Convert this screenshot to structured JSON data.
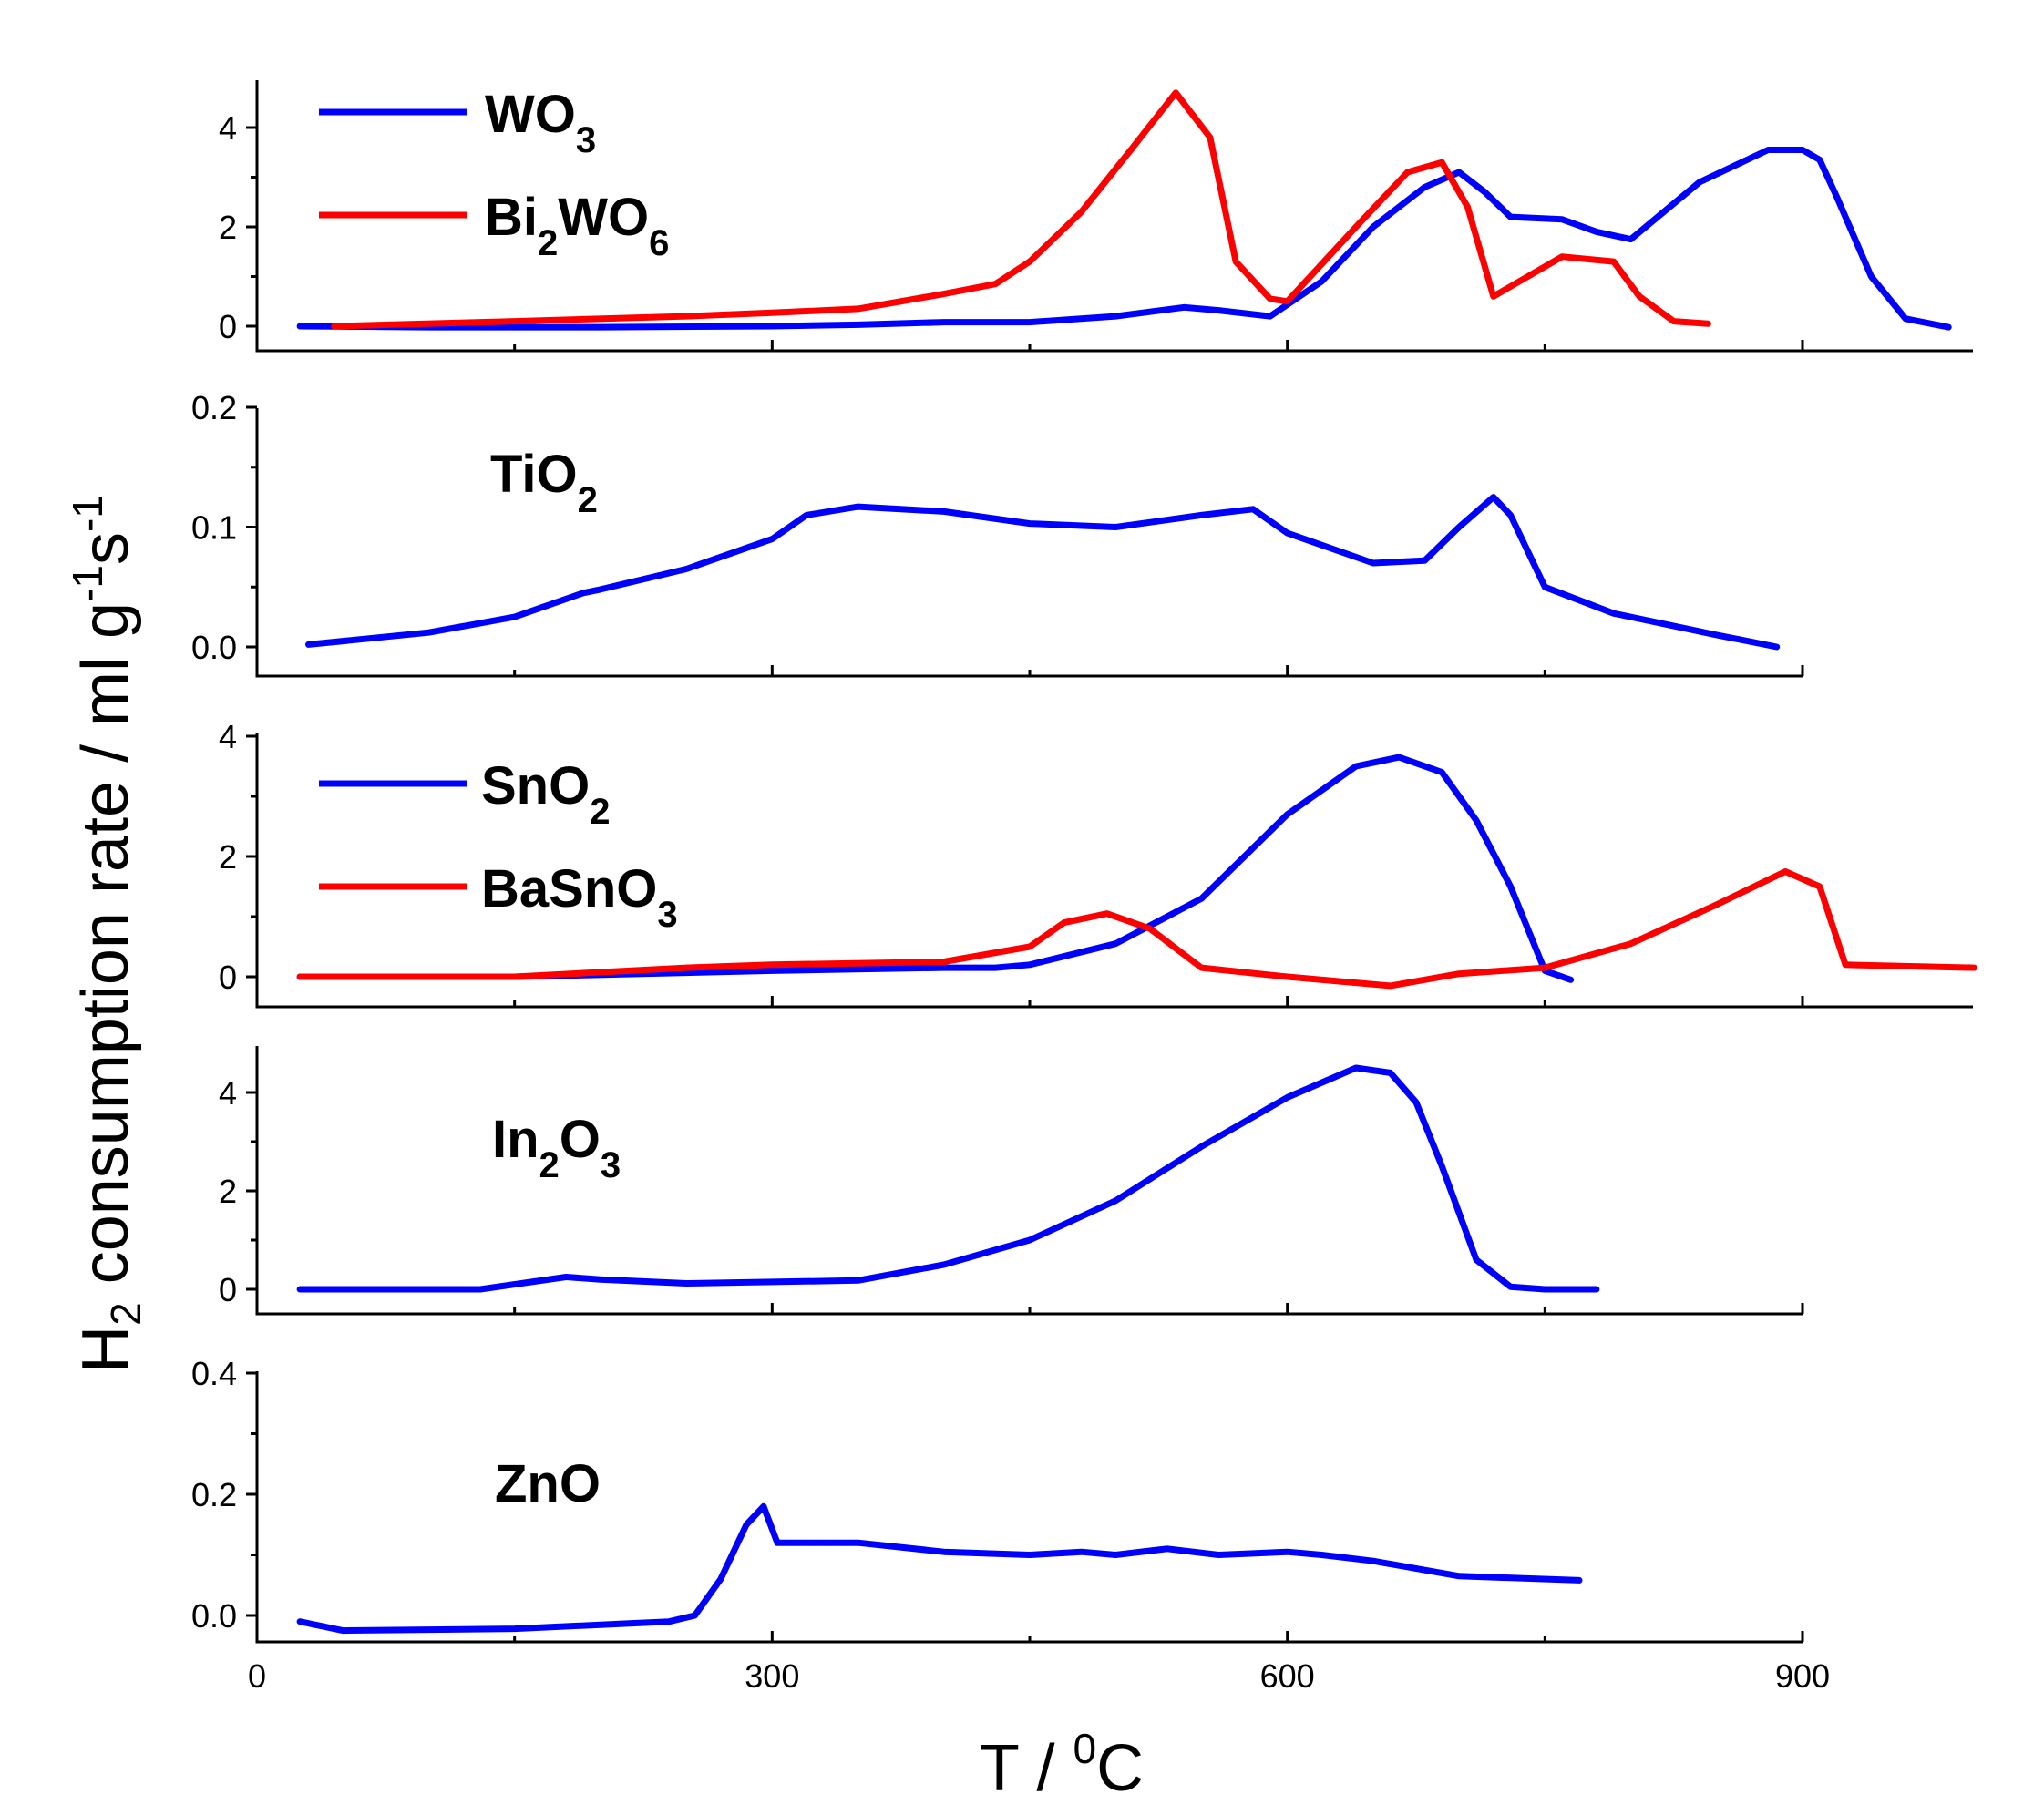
{
  "chart_data": {
    "type": "line",
    "x_axis": {
      "label_main": "T / ",
      "label_sup": "0",
      "label_end": "C",
      "range": [
        0,
        1000
      ],
      "ticks": [
        0,
        300,
        600,
        900
      ],
      "tick_labels": [
        "0",
        "300",
        "600",
        "900"
      ]
    },
    "y_axis": {
      "label_main": "H",
      "label_sub": "2",
      "label_rest": " consumption rate / ml g",
      "label_sup1": "-1",
      "label_s": "s",
      "label_sup2": "-1"
    },
    "colors": {
      "blue": "#0000ff",
      "red": "#ff0000",
      "axis": "#000000"
    },
    "panels": [
      {
        "id": "wo3",
        "ylim": [
          -0.3,
          5.0
        ],
        "yticks": [
          0,
          2,
          4
        ],
        "ytick_labels": [
          "0",
          "2",
          "4"
        ],
        "legend": [
          {
            "name": "WO",
            "sub": "3",
            "color": "#0000ff"
          },
          {
            "name": "Bi",
            "sub": "2",
            "name2": "WO",
            "sub2": "6",
            "color": "#ff0000"
          }
        ],
        "series": [
          {
            "name": "WO3",
            "color": "#0000ff",
            "x": [
              25,
              100,
              200,
              300,
              350,
              400,
              450,
              500,
              540,
              560,
              590,
              620,
              650,
              680,
              700,
              715,
              730,
              760,
              780,
              800,
              840,
              880,
              900,
              910,
              920,
              940,
              960,
              985
            ],
            "y": [
              0,
              -0.02,
              -0.02,
              0,
              0.03,
              0.08,
              0.08,
              0.2,
              0.38,
              0.32,
              0.2,
              0.9,
              2.0,
              2.8,
              3.1,
              2.7,
              2.2,
              2.15,
              1.9,
              1.75,
              2.9,
              3.55,
              3.55,
              3.35,
              2.6,
              1.0,
              0.15,
              -0.02
            ]
          },
          {
            "name": "Bi2WO6",
            "color": "#ff0000",
            "x": [
              45,
              150,
              250,
              300,
              350,
              400,
              430,
              450,
              480,
              510,
              535,
              555,
              570,
              590,
              600,
              640,
              670,
              690,
              705,
              720,
              740,
              760,
              790,
              805,
              825,
              845
            ],
            "y": [
              0,
              0.1,
              0.2,
              0.27,
              0.35,
              0.65,
              0.85,
              1.3,
              2.3,
              3.6,
              4.7,
              3.8,
              1.3,
              0.55,
              0.5,
              2.0,
              3.1,
              3.3,
              2.4,
              0.6,
              1.0,
              1.4,
              1.3,
              0.6,
              0.1,
              0.05
            ]
          }
        ]
      },
      {
        "id": "tio2",
        "ylim": [
          -0.025,
          0.2
        ],
        "yticks": [
          0.0,
          0.1,
          0.2
        ],
        "ytick_labels": [
          "0.0",
          "0.1",
          "0.2"
        ],
        "label": {
          "name": "TiO",
          "sub": "2"
        },
        "series": [
          {
            "name": "TiO2",
            "color": "#0000ff",
            "x": [
              30,
              100,
              150,
              190,
              200,
              250,
              300,
              320,
              350,
              400,
              450,
              500,
              550,
              580,
              600,
              650,
              680,
              700,
              720,
              730,
              750,
              790,
              850,
              885
            ],
            "y": [
              0.002,
              0.012,
              0.025,
              0.045,
              0.048,
              0.065,
              0.09,
              0.11,
              0.117,
              0.113,
              0.103,
              0.1,
              0.11,
              0.115,
              0.095,
              0.07,
              0.072,
              0.1,
              0.125,
              0.11,
              0.05,
              0.028,
              0.01,
              0.0
            ]
          }
        ]
      },
      {
        "id": "sno2",
        "ylim": [
          -0.5,
          4.0
        ],
        "yticks": [
          0,
          2,
          4
        ],
        "ytick_labels": [
          "0",
          "2",
          "4"
        ],
        "legend": [
          {
            "name": "SnO",
            "sub": "2",
            "color": "#0000ff"
          },
          {
            "name": "BaSnO",
            "sub": "3",
            "color": "#ff0000"
          }
        ],
        "series": [
          {
            "name": "SnO2",
            "color": "#0000ff",
            "x": [
              25,
              150,
              300,
              400,
              430,
              450,
              500,
              550,
              600,
              640,
              665,
              690,
              710,
              730,
              750,
              765
            ],
            "y": [
              0,
              0,
              0.1,
              0.15,
              0.15,
              0.2,
              0.55,
              1.3,
              2.7,
              3.5,
              3.65,
              3.4,
              2.6,
              1.5,
              0.1,
              -0.05
            ]
          },
          {
            "name": "BaSnO3",
            "color": "#ff0000",
            "x": [
              25,
              150,
              250,
              300,
              400,
              450,
              470,
              495,
              520,
              550,
              600,
              660,
              700,
              750,
              800,
              850,
              890,
              910,
              925,
              1000
            ],
            "y": [
              0,
              0,
              0.15,
              0.2,
              0.25,
              0.5,
              0.9,
              1.05,
              0.8,
              0.15,
              0.0,
              -0.15,
              0.05,
              0.15,
              0.55,
              1.2,
              1.75,
              1.5,
              0.2,
              0.15
            ]
          }
        ]
      },
      {
        "id": "in2o3",
        "ylim": [
          -0.5,
          5.0
        ],
        "yticks": [
          0,
          2,
          4
        ],
        "ytick_labels": [
          "0",
          "2",
          "4"
        ],
        "label": {
          "name": "In",
          "sub": "2",
          "name2": "O",
          "sub2": "3"
        },
        "series": [
          {
            "name": "In2O3",
            "color": "#0000ff",
            "x": [
              25,
              130,
              160,
              180,
              200,
              250,
              300,
              350,
              400,
              450,
              500,
              550,
              600,
              640,
              660,
              675,
              690,
              710,
              730,
              750,
              780
            ],
            "y": [
              0,
              0,
              0.15,
              0.25,
              0.2,
              0.12,
              0.15,
              0.18,
              0.5,
              1.0,
              1.8,
              2.9,
              3.9,
              4.5,
              4.4,
              3.8,
              2.5,
              0.6,
              0.05,
              0.0,
              0.0
            ]
          }
        ]
      },
      {
        "id": "zno",
        "ylim": [
          -0.05,
          0.4
        ],
        "yticks": [
          0.0,
          0.2,
          0.4
        ],
        "ytick_labels": [
          "0.0",
          "0.2",
          "0.4"
        ],
        "label": {
          "name": "ZnO"
        },
        "series": [
          {
            "name": "ZnO",
            "color": "#0000ff",
            "x": [
              25,
              50,
              150,
              240,
              255,
              270,
              285,
              295,
              303,
              310,
              350,
              400,
              450,
              480,
              500,
              530,
              560,
              600,
              620,
              650,
              700,
              770
            ],
            "y": [
              -0.01,
              -0.025,
              -0.022,
              -0.01,
              0.0,
              0.06,
              0.15,
              0.18,
              0.12,
              0.12,
              0.12,
              0.105,
              0.1,
              0.105,
              0.1,
              0.11,
              0.1,
              0.105,
              0.1,
              0.09,
              0.065,
              0.058
            ]
          }
        ]
      }
    ]
  }
}
